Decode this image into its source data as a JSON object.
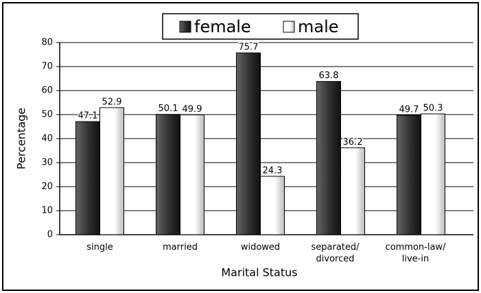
{
  "chart_data": {
    "type": "bar",
    "y_axis_label": "Percentage",
    "x_axis_label": "Marital Status",
    "categories": [
      [
        "single"
      ],
      [
        "married"
      ],
      [
        "widowed"
      ],
      [
        "separated/",
        "divorced"
      ],
      [
        "common-law/",
        "live-in"
      ]
    ],
    "series": [
      {
        "name": "female",
        "color": "#333333",
        "values": [
          47.1,
          50.1,
          75.7,
          63.8,
          49.7
        ]
      },
      {
        "name": "male",
        "color": "#ffffff",
        "values": [
          52.9,
          49.9,
          24.3,
          36.2,
          50.3
        ]
      }
    ],
    "ylim": [
      0,
      80
    ],
    "yticks": [
      0,
      10,
      20,
      30,
      40,
      50,
      60,
      70,
      80
    ],
    "grid": true,
    "legend": "top"
  }
}
